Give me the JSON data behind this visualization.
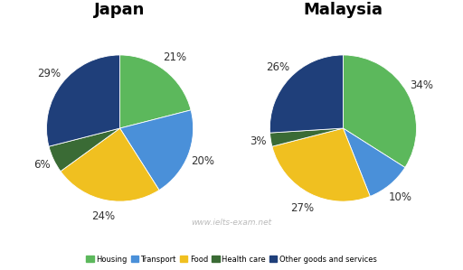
{
  "japan": {
    "title": "Japan",
    "values": [
      21,
      20,
      24,
      6,
      29
    ],
    "pct_labels": [
      "21%",
      "20%",
      "24%",
      "6%",
      "29%"
    ],
    "label_r": [
      1.22,
      1.22,
      1.22,
      1.18,
      1.22
    ],
    "startangle": 90
  },
  "malaysia": {
    "title": "Malaysia",
    "values": [
      34,
      10,
      27,
      3,
      26
    ],
    "pct_labels": [
      "34%",
      "10%",
      "27%",
      "3%",
      "26%"
    ],
    "label_r": [
      1.22,
      1.22,
      1.22,
      1.18,
      1.22
    ],
    "startangle": 90
  },
  "colors": [
    "#5cb85c",
    "#4a90d9",
    "#f0c020",
    "#3a6b35",
    "#1f3f7a"
  ],
  "legend_labels": [
    "Housing",
    "Transport",
    "Food",
    "Health care",
    "Other goods and services"
  ],
  "watermark": "www.ielts-exam.net",
  "bg_color": "#ffffff",
  "label_fontsize": 8.5,
  "title_fontsize": 13
}
